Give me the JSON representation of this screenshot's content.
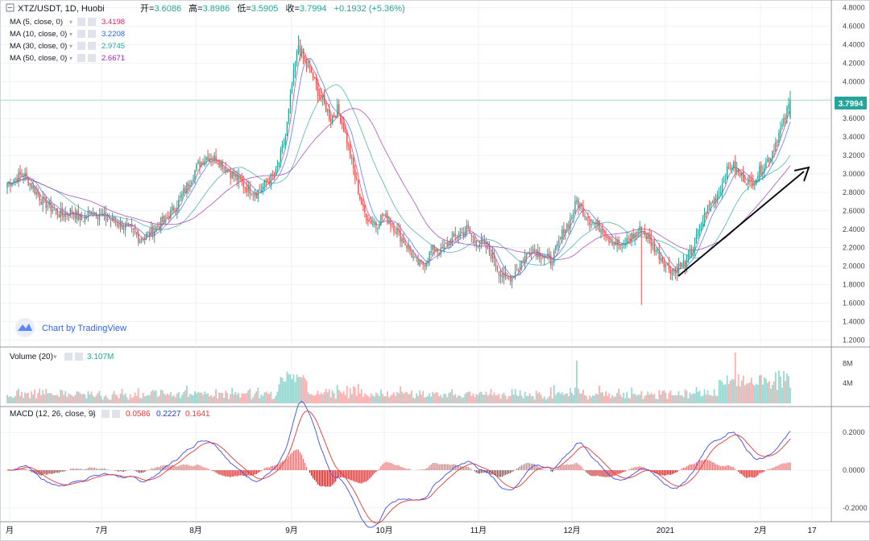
{
  "header": {
    "symbol": "XTZ/USDT, 1D, Huobi",
    "open_label": "开=",
    "open": "3.6086",
    "high_label": "高=",
    "high": "3.8986",
    "low_label": "低=",
    "low": "3.5905",
    "close_label": "收=",
    "close": "3.7994",
    "change": "+0.1932 (+5.36%)"
  },
  "indicators": [
    {
      "label": "MA (5, close, 0)",
      "value": "3.4198",
      "color": "#e91e63"
    },
    {
      "label": "MA (10, close, 0)",
      "value": "3.2208",
      "color": "#2962ff"
    },
    {
      "label": "MA (30, close, 0)",
      "value": "2.9745",
      "color": "#26a69a"
    },
    {
      "label": "MA (50, close, 0)",
      "value": "2.6671",
      "color": "#9c27b0"
    }
  ],
  "volume_label": "Volume (20)",
  "volume_value": "3.107M",
  "macd_label": "MACD (12, 26, close, 9)",
  "macd_values": [
    {
      "value": "0.0586",
      "color": "#e53935"
    },
    {
      "value": "0.2227",
      "color": "#1e3bd6"
    },
    {
      "value": "0.1641",
      "color": "#e53935"
    }
  ],
  "branding": "Chart by TradingView",
  "last_price_tag": "3.7994",
  "colors": {
    "up": "#26a69a",
    "down": "#ef5350",
    "grid": "#e0e3eb",
    "price_line": "#a8d8d0"
  },
  "chart_data": {
    "type": "candlestick",
    "price_ticks": [
      "4.8000",
      "4.6000",
      "4.4000",
      "4.2000",
      "4.0000",
      "3.8000",
      "3.6000",
      "3.4000",
      "3.2000",
      "3.0000",
      "2.8000",
      "2.6000",
      "2.4000",
      "2.2000",
      "2.0000",
      "1.8000",
      "1.6000",
      "1.4000",
      "1.2000"
    ],
    "price_range": [
      1.15,
      4.85
    ],
    "volume_ticks": [
      "8M",
      "4M"
    ],
    "volume_range": [
      0,
      10.5
    ],
    "macd_ticks": [
      "0.2000",
      "0.0000",
      "-0.2000"
    ],
    "macd_range": [
      -0.26,
      0.32
    ],
    "x_labels": [
      "月",
      "7月",
      "8月",
      "9月",
      "10月",
      "11月",
      "12月",
      "2021",
      "2月",
      "17"
    ],
    "close_path": [
      [
        0,
        2.9
      ],
      [
        10,
        3.0
      ],
      [
        16,
        2.85
      ],
      [
        22,
        2.7
      ],
      [
        28,
        2.62
      ],
      [
        34,
        2.55
      ],
      [
        40,
        2.6
      ],
      [
        46,
        2.5
      ],
      [
        52,
        2.6
      ],
      [
        58,
        2.55
      ],
      [
        64,
        2.5
      ],
      [
        70,
        2.45
      ],
      [
        76,
        2.4
      ],
      [
        82,
        2.3
      ],
      [
        88,
        2.35
      ],
      [
        94,
        2.45
      ],
      [
        100,
        2.55
      ],
      [
        106,
        2.7
      ],
      [
        112,
        2.9
      ],
      [
        118,
        3.1
      ],
      [
        124,
        3.2
      ],
      [
        130,
        3.15
      ],
      [
        136,
        3.05
      ],
      [
        142,
        2.95
      ],
      [
        148,
        2.85
      ],
      [
        154,
        2.8
      ],
      [
        160,
        2.9
      ],
      [
        166,
        3.0
      ],
      [
        172,
        3.4
      ],
      [
        176,
        3.95
      ],
      [
        180,
        4.4
      ],
      [
        184,
        4.2
      ],
      [
        188,
        4.1
      ],
      [
        192,
        3.9
      ],
      [
        196,
        3.75
      ],
      [
        200,
        3.6
      ],
      [
        204,
        3.7
      ],
      [
        208,
        3.5
      ],
      [
        212,
        3.2
      ],
      [
        216,
        2.9
      ],
      [
        220,
        2.6
      ],
      [
        224,
        2.5
      ],
      [
        228,
        2.45
      ],
      [
        232,
        2.55
      ],
      [
        236,
        2.5
      ],
      [
        240,
        2.4
      ],
      [
        244,
        2.3
      ],
      [
        248,
        2.2
      ],
      [
        252,
        2.05
      ],
      [
        256,
        2.0
      ],
      [
        260,
        2.1
      ],
      [
        264,
        2.2
      ],
      [
        268,
        2.15
      ],
      [
        272,
        2.25
      ],
      [
        276,
        2.3
      ],
      [
        280,
        2.35
      ],
      [
        284,
        2.4
      ],
      [
        288,
        2.3
      ],
      [
        292,
        2.25
      ],
      [
        296,
        2.2
      ],
      [
        300,
        2.1
      ],
      [
        304,
        1.95
      ],
      [
        308,
        1.85
      ],
      [
        312,
        1.9
      ],
      [
        316,
        2.0
      ],
      [
        320,
        2.1
      ],
      [
        324,
        2.2
      ],
      [
        328,
        2.15
      ],
      [
        332,
        2.1
      ],
      [
        336,
        2.05
      ],
      [
        340,
        2.2
      ],
      [
        344,
        2.4
      ],
      [
        348,
        2.5
      ],
      [
        352,
        2.7
      ],
      [
        356,
        2.6
      ],
      [
        360,
        2.5
      ],
      [
        364,
        2.45
      ],
      [
        368,
        2.4
      ],
      [
        372,
        2.3
      ],
      [
        376,
        2.25
      ],
      [
        380,
        2.2
      ],
      [
        384,
        2.3
      ],
      [
        388,
        2.35
      ],
      [
        392,
        2.4
      ],
      [
        396,
        2.3
      ],
      [
        400,
        2.2
      ],
      [
        404,
        2.1
      ],
      [
        408,
        2.0
      ],
      [
        412,
        1.95
      ],
      [
        416,
        2.0
      ],
      [
        420,
        2.05
      ],
      [
        424,
        2.2
      ],
      [
        428,
        2.4
      ],
      [
        432,
        2.6
      ],
      [
        436,
        2.7
      ],
      [
        440,
        2.8
      ],
      [
        444,
        3.0
      ],
      [
        448,
        3.1
      ],
      [
        452,
        3.0
      ],
      [
        456,
        2.95
      ],
      [
        460,
        2.9
      ],
      [
        464,
        3.0
      ],
      [
        468,
        3.1
      ],
      [
        472,
        3.2
      ],
      [
        476,
        3.4
      ],
      [
        480,
        3.55
      ],
      [
        484,
        3.8
      ]
    ],
    "annotation": "trend arrow"
  }
}
